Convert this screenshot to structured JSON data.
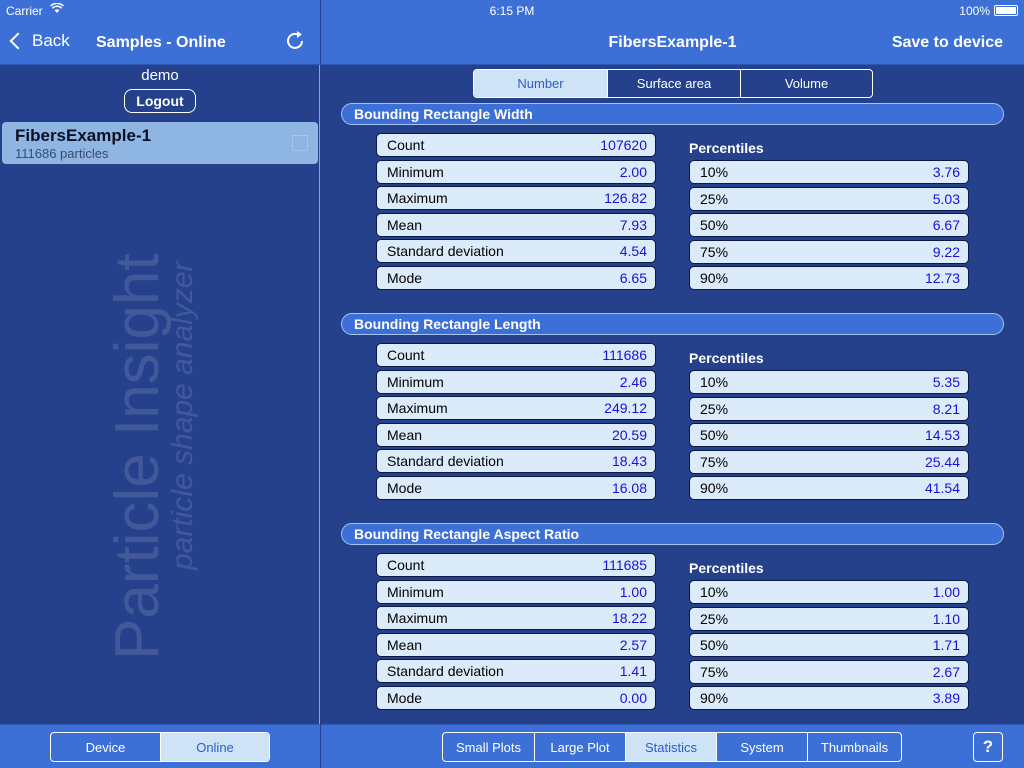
{
  "status": {
    "carrier": "Carrier",
    "time": "6:15 PM",
    "battery": "100%"
  },
  "left": {
    "back_label": "Back",
    "title": "Samples - Online",
    "username": "demo",
    "logout_label": "Logout",
    "sample": {
      "name": "FibersExample-1",
      "sub": "111686 particles"
    },
    "watermark_text": "Particle Insight",
    "watermark_sub": "particle shape analyzer",
    "bottom_tabs": [
      {
        "label": "Device"
      },
      {
        "label": "Online",
        "active": true
      }
    ]
  },
  "right": {
    "title": "FibersExample-1",
    "save_label": "Save to device",
    "weight_tabs": [
      {
        "label": "Number",
        "active": true
      },
      {
        "label": "Surface area"
      },
      {
        "label": "Volume"
      }
    ],
    "percentiles_label": "Percentiles",
    "sections": [
      {
        "title": "Bounding Rectangle Width",
        "stats": [
          {
            "k": "Count",
            "v": "107620"
          },
          {
            "k": "Minimum",
            "v": "2.00"
          },
          {
            "k": "Maximum",
            "v": "126.82"
          },
          {
            "k": "Mean",
            "v": "7.93"
          },
          {
            "k": "Standard deviation",
            "v": "4.54"
          },
          {
            "k": "Mode",
            "v": "6.65"
          }
        ],
        "pcts": [
          {
            "k": "10%",
            "v": "3.76"
          },
          {
            "k": "25%",
            "v": "5.03"
          },
          {
            "k": "50%",
            "v": "6.67"
          },
          {
            "k": "75%",
            "v": "9.22"
          },
          {
            "k": "90%",
            "v": "12.73"
          }
        ]
      },
      {
        "title": "Bounding Rectangle Length",
        "stats": [
          {
            "k": "Count",
            "v": "111686"
          },
          {
            "k": "Minimum",
            "v": "2.46"
          },
          {
            "k": "Maximum",
            "v": "249.12"
          },
          {
            "k": "Mean",
            "v": "20.59"
          },
          {
            "k": "Standard deviation",
            "v": "18.43"
          },
          {
            "k": "Mode",
            "v": "16.08"
          }
        ],
        "pcts": [
          {
            "k": "10%",
            "v": "5.35"
          },
          {
            "k": "25%",
            "v": "8.21"
          },
          {
            "k": "50%",
            "v": "14.53"
          },
          {
            "k": "75%",
            "v": "25.44"
          },
          {
            "k": "90%",
            "v": "41.54"
          }
        ]
      },
      {
        "title": "Bounding Rectangle Aspect Ratio",
        "stats": [
          {
            "k": "Count",
            "v": "111685"
          },
          {
            "k": "Minimum",
            "v": "1.00"
          },
          {
            "k": "Maximum",
            "v": "18.22"
          },
          {
            "k": "Mean",
            "v": "2.57"
          },
          {
            "k": "Standard deviation",
            "v": "1.41"
          },
          {
            "k": "Mode",
            "v": "0.00"
          }
        ],
        "pcts": [
          {
            "k": "10%",
            "v": "1.00"
          },
          {
            "k": "25%",
            "v": "1.10"
          },
          {
            "k": "50%",
            "v": "1.71"
          },
          {
            "k": "75%",
            "v": "2.67"
          },
          {
            "k": "90%",
            "v": "3.89"
          }
        ]
      }
    ],
    "bottom_tabs": [
      {
        "label": "Small Plots"
      },
      {
        "label": "Large Plot"
      },
      {
        "label": "Statistics",
        "active": true
      },
      {
        "label": "System"
      },
      {
        "label": "Thumbnails"
      }
    ],
    "help_label": "?"
  }
}
